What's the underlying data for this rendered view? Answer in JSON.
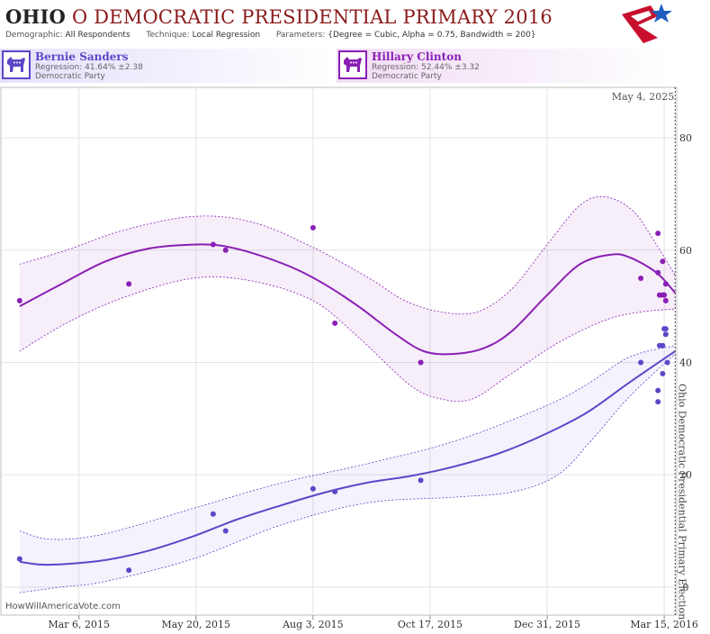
{
  "header": {
    "state": "OHIO",
    "title_rest": "O DEMOCRATIC PRESIDENTIAL PRIMARY 2016",
    "demographic_label": "Demographic:",
    "demographic_value": "All Respondents",
    "technique_label": "Technique:",
    "technique_value": "Local Regression",
    "parameters_label": "Parameters:",
    "parameters_value": "{Degree = Cubic, Alpha = 0.75, Bandwidth = 200}"
  },
  "candidates": [
    {
      "name": "Bernie Sanders",
      "regression": "Regression: 41.64% ±2.38",
      "party": "Democratic Party",
      "color": "#5a48c8"
    },
    {
      "name": "Hillary Clinton",
      "regression": "Regression: 52.44% ±3.32",
      "party": "Democratic Party",
      "color": "#8a1fb5"
    }
  ],
  "watermark": "HowWillAmericaVote.com",
  "colors": {
    "bernie": "#5a48c8",
    "hillary": "#8a1fb5",
    "grid": "#e3e3e3"
  },
  "chart_data": {
    "type": "scatter",
    "x_axis": {
      "type": "date",
      "range": [
        "2015-01-15",
        "2016-03-23"
      ],
      "ticks": [
        {
          "date": "2015-03-06",
          "label": "Mar 6, 2015"
        },
        {
          "date": "2015-05-20",
          "label": "May 20, 2015"
        },
        {
          "date": "2015-08-03",
          "label": "Aug 3, 2015"
        },
        {
          "date": "2015-10-17",
          "label": "Oct 17, 2015"
        },
        {
          "date": "2015-12-31",
          "label": "Dec 31, 2015"
        },
        {
          "date": "2016-03-15",
          "label": "Mar 15, 2016"
        }
      ]
    },
    "y_axis": {
      "range": [
        -5,
        89
      ],
      "ticks": [
        0,
        20,
        40,
        60,
        80
      ],
      "position": "right"
    },
    "grid": true,
    "reference_line": {
      "date": "2016-03-22",
      "top_label": "May 4, 2025",
      "side_label": "Ohio Democratic Presidential Primary Election"
    },
    "series": [
      {
        "name": "Hillary Clinton",
        "key": "hillary",
        "points": [
          [
            "2015-01-27",
            51
          ],
          [
            "2015-04-07",
            54
          ],
          [
            "2015-05-31",
            61
          ],
          [
            "2015-06-08",
            60
          ],
          [
            "2015-08-03",
            64
          ],
          [
            "2015-08-17",
            47
          ],
          [
            "2015-10-11",
            40
          ],
          [
            "2016-02-29",
            55
          ],
          [
            "2016-03-11",
            63
          ],
          [
            "2016-03-11",
            56
          ],
          [
            "2016-03-12",
            52
          ],
          [
            "2016-03-14",
            58
          ],
          [
            "2016-03-14",
            52
          ],
          [
            "2016-03-15",
            52
          ],
          [
            "2016-03-16",
            51
          ],
          [
            "2016-03-16",
            54
          ]
        ],
        "trend": [
          [
            "2015-01-27",
            50
          ],
          [
            "2015-02-23",
            54
          ],
          [
            "2015-03-23",
            58
          ],
          [
            "2015-04-20",
            60.3
          ],
          [
            "2015-05-18",
            61
          ],
          [
            "2015-06-05",
            60.8
          ],
          [
            "2015-06-25",
            59.5
          ],
          [
            "2015-07-20",
            57
          ],
          [
            "2015-08-10",
            54
          ],
          [
            "2015-09-01",
            50
          ],
          [
            "2015-09-25",
            45
          ],
          [
            "2015-10-13",
            42
          ],
          [
            "2015-10-31",
            41.5
          ],
          [
            "2015-11-20",
            42.5
          ],
          [
            "2015-12-08",
            45.5
          ],
          [
            "2015-12-31",
            52
          ],
          [
            "2016-01-21",
            57.5
          ],
          [
            "2016-02-10",
            59.2
          ],
          [
            "2016-02-22",
            58.7
          ],
          [
            "2016-03-10",
            56
          ],
          [
            "2016-03-22",
            52.4
          ]
        ],
        "upper": [
          [
            "2015-01-27",
            57.5
          ],
          [
            "2015-02-26",
            60
          ],
          [
            "2015-04-03",
            63.5
          ],
          [
            "2015-05-18",
            66
          ],
          [
            "2015-06-25",
            65
          ],
          [
            "2015-08-03",
            60.5
          ],
          [
            "2015-09-08",
            55
          ],
          [
            "2015-10-01",
            51
          ],
          [
            "2015-10-24",
            49
          ],
          [
            "2015-11-16",
            49
          ],
          [
            "2015-12-08",
            53
          ],
          [
            "2015-12-31",
            61
          ],
          [
            "2016-01-21",
            68
          ],
          [
            "2016-02-06",
            69.5
          ],
          [
            "2016-02-24",
            67
          ],
          [
            "2016-03-10",
            61
          ],
          [
            "2016-03-22",
            55.5
          ]
        ],
        "lower": [
          [
            "2015-01-27",
            42
          ],
          [
            "2015-02-26",
            47
          ],
          [
            "2015-04-03",
            51.5
          ],
          [
            "2015-05-18",
            55
          ],
          [
            "2015-06-25",
            54.5
          ],
          [
            "2015-08-03",
            51
          ],
          [
            "2015-09-01",
            44.5
          ],
          [
            "2015-10-04",
            36
          ],
          [
            "2015-10-24",
            33.5
          ],
          [
            "2015-11-13",
            33.5
          ],
          [
            "2015-12-08",
            38
          ],
          [
            "2016-01-07",
            43.5
          ],
          [
            "2016-02-06",
            47.5
          ],
          [
            "2016-02-29",
            49
          ],
          [
            "2016-03-22",
            49.5
          ]
        ]
      },
      {
        "name": "Bernie Sanders",
        "key": "bernie",
        "points": [
          [
            "2015-01-27",
            5
          ],
          [
            "2015-04-07",
            3
          ],
          [
            "2015-05-31",
            13
          ],
          [
            "2015-06-08",
            10
          ],
          [
            "2015-08-03",
            17.5
          ],
          [
            "2015-08-17",
            17
          ],
          [
            "2015-10-11",
            19
          ],
          [
            "2016-02-29",
            40
          ],
          [
            "2016-03-11",
            33
          ],
          [
            "2016-03-11",
            35
          ],
          [
            "2016-03-12",
            43
          ],
          [
            "2016-03-14",
            43
          ],
          [
            "2016-03-14",
            38
          ],
          [
            "2016-03-15",
            46
          ],
          [
            "2016-03-16",
            46
          ],
          [
            "2016-03-16",
            45
          ],
          [
            "2016-03-17",
            40
          ]
        ],
        "trend": [
          [
            "2015-01-27",
            4.5
          ],
          [
            "2015-02-09",
            4
          ],
          [
            "2015-02-26",
            4.1
          ],
          [
            "2015-03-23",
            4.8
          ],
          [
            "2015-04-20",
            6.5
          ],
          [
            "2015-05-18",
            9
          ],
          [
            "2015-06-15",
            12
          ],
          [
            "2015-07-13",
            14.5
          ],
          [
            "2015-08-10",
            16.8
          ],
          [
            "2015-09-07",
            18.6
          ],
          [
            "2015-10-05",
            19.8
          ],
          [
            "2015-11-02",
            21.5
          ],
          [
            "2015-11-30",
            23.8
          ],
          [
            "2015-12-28",
            27
          ],
          [
            "2016-01-25",
            31
          ],
          [
            "2016-02-22",
            36.5
          ],
          [
            "2016-03-22",
            42
          ]
        ],
        "upper": [
          [
            "2015-01-27",
            10
          ],
          [
            "2015-02-16",
            8.5
          ],
          [
            "2015-03-23",
            9.5
          ],
          [
            "2015-05-18",
            14
          ],
          [
            "2015-07-13",
            18.5
          ],
          [
            "2015-09-07",
            22
          ],
          [
            "2015-11-02",
            26
          ],
          [
            "2015-12-28",
            32
          ],
          [
            "2016-01-25",
            36
          ],
          [
            "2016-02-22",
            41
          ],
          [
            "2016-03-22",
            43
          ]
        ],
        "lower": [
          [
            "2015-01-27",
            -1
          ],
          [
            "2015-02-23",
            0
          ],
          [
            "2015-03-23",
            1
          ],
          [
            "2015-05-18",
            5
          ],
          [
            "2015-07-13",
            11
          ],
          [
            "2015-09-07",
            15
          ],
          [
            "2015-11-02",
            16
          ],
          [
            "2015-12-10",
            17
          ],
          [
            "2016-01-07",
            20
          ],
          [
            "2016-01-28",
            26
          ],
          [
            "2016-02-22",
            34
          ],
          [
            "2016-03-22",
            41.5
          ]
        ]
      }
    ]
  }
}
